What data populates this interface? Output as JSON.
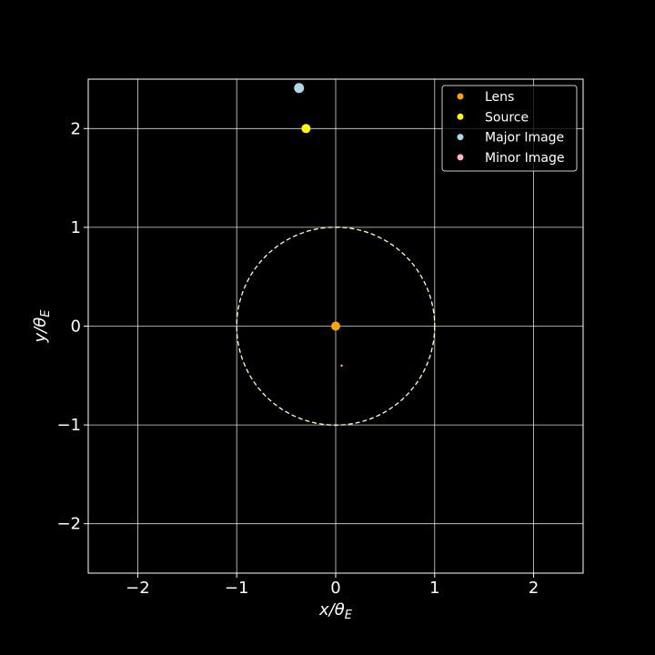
{
  "chart_data": {
    "type": "scatter",
    "title": "",
    "xlabel": "x/θ",
    "xlabel_sub": "E",
    "ylabel": "y/θ",
    "ylabel_sub": "E",
    "xlim": [
      -2.5,
      2.5
    ],
    "ylim": [
      -2.5,
      2.5
    ],
    "xticks": [
      -2,
      -1,
      0,
      1,
      2
    ],
    "yticks": [
      -2,
      -1,
      0,
      1,
      2
    ],
    "xtick_labels": [
      "−2",
      "−1",
      "0",
      "1",
      "2"
    ],
    "ytick_labels": [
      "−2",
      "−1",
      "0",
      "1",
      "2"
    ],
    "grid": true,
    "legend_position": "top-right",
    "background": "#000000",
    "foreground": "#ffffff",
    "einstein_ring": {
      "center": [
        0,
        0
      ],
      "radius": 1,
      "style": "dashed",
      "color": "#ffffcc"
    },
    "series": [
      {
        "name": "Lens",
        "color": "#ffa500",
        "points": [
          [
            0,
            0
          ]
        ],
        "marker_size": 5
      },
      {
        "name": "Source",
        "color": "#ffff00",
        "points": [
          [
            -0.3,
            2.0
          ]
        ],
        "marker_size": 5
      },
      {
        "name": "Major Image",
        "color": "#add8e6",
        "points": [
          [
            -0.37,
            2.41
          ]
        ],
        "marker_size": 5.5
      },
      {
        "name": "Minor Image",
        "color": "#ffb6c1",
        "points": [
          [
            0.06,
            -0.4
          ]
        ],
        "marker_size": 1.2
      }
    ]
  }
}
